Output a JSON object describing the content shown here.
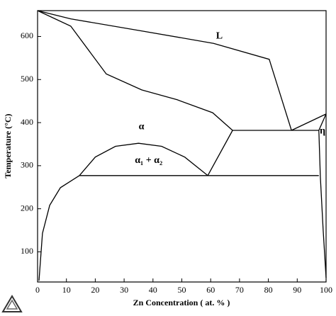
{
  "chart_data": {
    "type": "line",
    "xlabel": "Zn Concentration ( at. % )",
    "ylabel": "Temperature (°C)",
    "xlim": [
      0,
      100
    ],
    "ylim": [
      30,
      660
    ],
    "xticks": [
      0,
      10,
      20,
      30,
      40,
      50,
      60,
      70,
      80,
      90,
      100
    ],
    "yticks": [
      100,
      200,
      300,
      400,
      500,
      600
    ],
    "color": "#000000",
    "series": [
      {
        "x": [
          0,
          11.5,
          36,
          61,
          80.3,
          88
        ],
        "values": [
          660,
          641,
          613,
          584,
          547,
          382
        ]
      },
      {
        "x": [
          0,
          11.5,
          23.8,
          36.1,
          48.4,
          60.7,
          67.6
        ],
        "values": [
          660,
          624,
          513,
          476,
          453,
          423,
          382
        ]
      },
      {
        "x": [
          67.6,
          97.5
        ],
        "values": [
          382,
          382
        ]
      },
      {
        "x": [
          88,
          100
        ],
        "values": [
          382,
          420
        ]
      },
      {
        "x": [
          100,
          97.5,
          98,
          99,
          100
        ],
        "values": [
          420,
          382,
          275,
          150,
          40
        ]
      },
      {
        "x": [
          14.5,
          97.5
        ],
        "values": [
          277,
          277
        ]
      },
      {
        "x": [
          14.5,
          20,
          27,
          35,
          43,
          51,
          59
        ],
        "values": [
          277,
          320,
          345,
          352,
          345,
          320,
          277
        ]
      },
      {
        "x": [
          59,
          67.6
        ],
        "values": [
          277,
          382
        ]
      },
      {
        "x": [
          0.5,
          1.7,
          4.2,
          7.9,
          14.5
        ],
        "values": [
          33,
          143,
          208,
          249,
          277
        ]
      }
    ],
    "annotations": [
      {
        "text": "L",
        "x": 63,
        "y": 600
      },
      {
        "text": "α",
        "x": 36,
        "y": 390
      },
      {
        "text": "α₁ + α₂",
        "x": 38.5,
        "y": 312
      },
      {
        "text": "η",
        "x": 98.8,
        "y": 380
      }
    ]
  }
}
